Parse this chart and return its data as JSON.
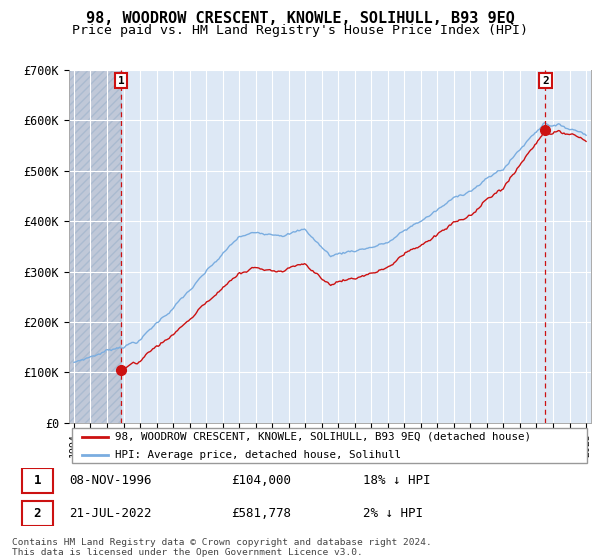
{
  "title": "98, WOODROW CRESCENT, KNOWLE, SOLIHULL, B93 9EQ",
  "subtitle": "Price paid vs. HM Land Registry's House Price Index (HPI)",
  "ylim": [
    0,
    700000
  ],
  "yticks": [
    0,
    100000,
    200000,
    300000,
    400000,
    500000,
    600000,
    700000
  ],
  "ytick_labels": [
    "£0",
    "£100K",
    "£200K",
    "£300K",
    "£400K",
    "£500K",
    "£600K",
    "£700K"
  ],
  "xlim_start": 1993.7,
  "xlim_end": 2025.3,
  "hpi_color": "#7aade0",
  "price_color": "#cc1111",
  "marker_color": "#cc1111",
  "dashed_line_color": "#cc1111",
  "plot_bg_color": "#dde8f5",
  "grid_color": "#ffffff",
  "hatch_color": "#c0c8d8",
  "transaction1_x": 1996.86,
  "transaction1_y": 104000,
  "transaction2_x": 2022.54,
  "transaction2_y": 581778,
  "legend_line1": "98, WOODROW CRESCENT, KNOWLE, SOLIHULL, B93 9EQ (detached house)",
  "legend_line2": "HPI: Average price, detached house, Solihull",
  "table_row1": [
    "1",
    "08-NOV-1996",
    "£104,000",
    "18% ↓ HPI"
  ],
  "table_row2": [
    "2",
    "21-JUL-2022",
    "£581,778",
    "2% ↓ HPI"
  ],
  "footnote": "Contains HM Land Registry data © Crown copyright and database right 2024.\nThis data is licensed under the Open Government Licence v3.0."
}
